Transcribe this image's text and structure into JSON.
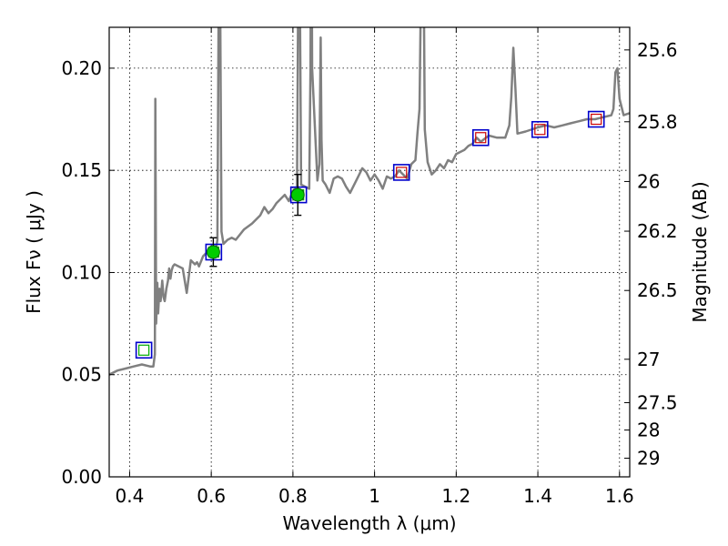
{
  "chart_data": {
    "type": "line",
    "xlabel": "Wavelength  λ (μm)",
    "ylabel": "Flux  Fν  ( μJy )",
    "ylabel_right": "Magnitude (AB)",
    "xlim": [
      0.35,
      1.625
    ],
    "ylim": [
      0.0,
      0.22
    ],
    "grid": true,
    "x_ticks": [
      0.4,
      0.6,
      0.8,
      1.0,
      1.2,
      1.4,
      1.6
    ],
    "x_tick_labels": [
      "0.4",
      "0.6",
      "0.8",
      "1",
      "1.2",
      "1.4",
      "1.6"
    ],
    "y_ticks": [
      0.0,
      0.05,
      0.1,
      0.15,
      0.2
    ],
    "y_tick_labels": [
      "0.00",
      "0.05",
      "0.10",
      "0.15",
      "0.20"
    ],
    "right_ticks": [
      {
        "mag": 25.6,
        "label": "25.6"
      },
      {
        "mag": 25.8,
        "label": "25.8"
      },
      {
        "mag": 26.0,
        "label": "26"
      },
      {
        "mag": 26.2,
        "label": "26.2"
      },
      {
        "mag": 26.5,
        "label": "26.5"
      },
      {
        "mag": 27.0,
        "label": "27"
      },
      {
        "mag": 27.5,
        "label": "27.5"
      },
      {
        "mag": 28.0,
        "label": "28"
      },
      {
        "mag": 29.0,
        "label": "29"
      }
    ],
    "mag_zero_point": 23.9,
    "model_spectrum": {
      "color": "#808080",
      "x": [
        0.35,
        0.37,
        0.39,
        0.41,
        0.43,
        0.45,
        0.458,
        0.462,
        0.463,
        0.465,
        0.468,
        0.47,
        0.473,
        0.476,
        0.48,
        0.483,
        0.486,
        0.49,
        0.494,
        0.497,
        0.5,
        0.503,
        0.506,
        0.51,
        0.52,
        0.53,
        0.54,
        0.55,
        0.56,
        0.565,
        0.57,
        0.58,
        0.59,
        0.6,
        0.61,
        0.615,
        0.618,
        0.62,
        0.622,
        0.625,
        0.63,
        0.64,
        0.65,
        0.66,
        0.68,
        0.7,
        0.72,
        0.73,
        0.74,
        0.75,
        0.76,
        0.77,
        0.78,
        0.79,
        0.8,
        0.81,
        0.813,
        0.815,
        0.817,
        0.82,
        0.83,
        0.84,
        0.843,
        0.845,
        0.847,
        0.86,
        0.865,
        0.868,
        0.87,
        0.873,
        0.88,
        0.89,
        0.9,
        0.91,
        0.92,
        0.93,
        0.94,
        0.95,
        0.96,
        0.97,
        0.98,
        0.99,
        1.0,
        1.01,
        1.02,
        1.03,
        1.04,
        1.05,
        1.06,
        1.07,
        1.08,
        1.09,
        1.1,
        1.105,
        1.11,
        1.115,
        1.118,
        1.12,
        1.123,
        1.13,
        1.14,
        1.15,
        1.16,
        1.17,
        1.18,
        1.19,
        1.2,
        1.21,
        1.22,
        1.23,
        1.24,
        1.25,
        1.26,
        1.28,
        1.3,
        1.32,
        1.33,
        1.335,
        1.34,
        1.345,
        1.35,
        1.37,
        1.4,
        1.42,
        1.44,
        1.46,
        1.48,
        1.5,
        1.52,
        1.54,
        1.56,
        1.58,
        1.585,
        1.59,
        1.595,
        1.6,
        1.61,
        1.625
      ],
      "y": [
        0.05,
        0.052,
        0.053,
        0.054,
        0.055,
        0.054,
        0.054,
        0.06,
        0.185,
        0.075,
        0.095,
        0.08,
        0.092,
        0.086,
        0.096,
        0.088,
        0.086,
        0.092,
        0.096,
        0.102,
        0.097,
        0.101,
        0.103,
        0.104,
        0.103,
        0.102,
        0.09,
        0.106,
        0.104,
        0.105,
        0.103,
        0.108,
        0.11,
        0.111,
        0.109,
        0.116,
        0.225,
        0.32,
        0.23,
        0.12,
        0.114,
        0.116,
        0.117,
        0.116,
        0.121,
        0.124,
        0.128,
        0.132,
        0.129,
        0.131,
        0.134,
        0.136,
        0.138,
        0.135,
        0.14,
        0.142,
        0.24,
        0.32,
        0.24,
        0.143,
        0.142,
        0.141,
        0.2,
        0.31,
        0.2,
        0.145,
        0.153,
        0.215,
        0.165,
        0.145,
        0.143,
        0.139,
        0.146,
        0.147,
        0.146,
        0.142,
        0.139,
        0.143,
        0.147,
        0.151,
        0.149,
        0.145,
        0.148,
        0.145,
        0.141,
        0.147,
        0.146,
        0.147,
        0.15,
        0.148,
        0.146,
        0.153,
        0.155,
        0.168,
        0.18,
        0.262,
        0.3,
        0.26,
        0.17,
        0.154,
        0.148,
        0.15,
        0.153,
        0.151,
        0.155,
        0.154,
        0.158,
        0.159,
        0.16,
        0.162,
        0.163,
        0.166,
        0.164,
        0.167,
        0.166,
        0.166,
        0.172,
        0.186,
        0.21,
        0.19,
        0.168,
        0.169,
        0.171,
        0.172,
        0.171,
        0.172,
        0.173,
        0.174,
        0.175,
        0.175,
        0.176,
        0.177,
        0.18,
        0.198,
        0.2,
        0.185,
        0.177,
        0.178
      ]
    },
    "observed_points": [
      {
        "x": 0.605,
        "y": 0.11,
        "yerr": 0.007,
        "color": "#00cc00"
      },
      {
        "x": 0.812,
        "y": 0.138,
        "yerr": 0.01,
        "color": "#00cc00"
      }
    ],
    "model_boxes": [
      {
        "x": 0.435,
        "y": 0.062,
        "inner_color": "#00aa00"
      },
      {
        "x": 0.606,
        "y": 0.11,
        "inner_color": "#00aa00"
      },
      {
        "x": 0.814,
        "y": 0.138,
        "inner_color": "#00aa00"
      },
      {
        "x": 1.066,
        "y": 0.149,
        "inner_color": "#cc0000"
      },
      {
        "x": 1.26,
        "y": 0.166,
        "inner_color": "#cc0000"
      },
      {
        "x": 1.405,
        "y": 0.17,
        "inner_color": "#cc0000"
      },
      {
        "x": 1.543,
        "y": 0.175,
        "inner_color": "#cc0000"
      }
    ],
    "box_outer_color": "#0000cc"
  }
}
